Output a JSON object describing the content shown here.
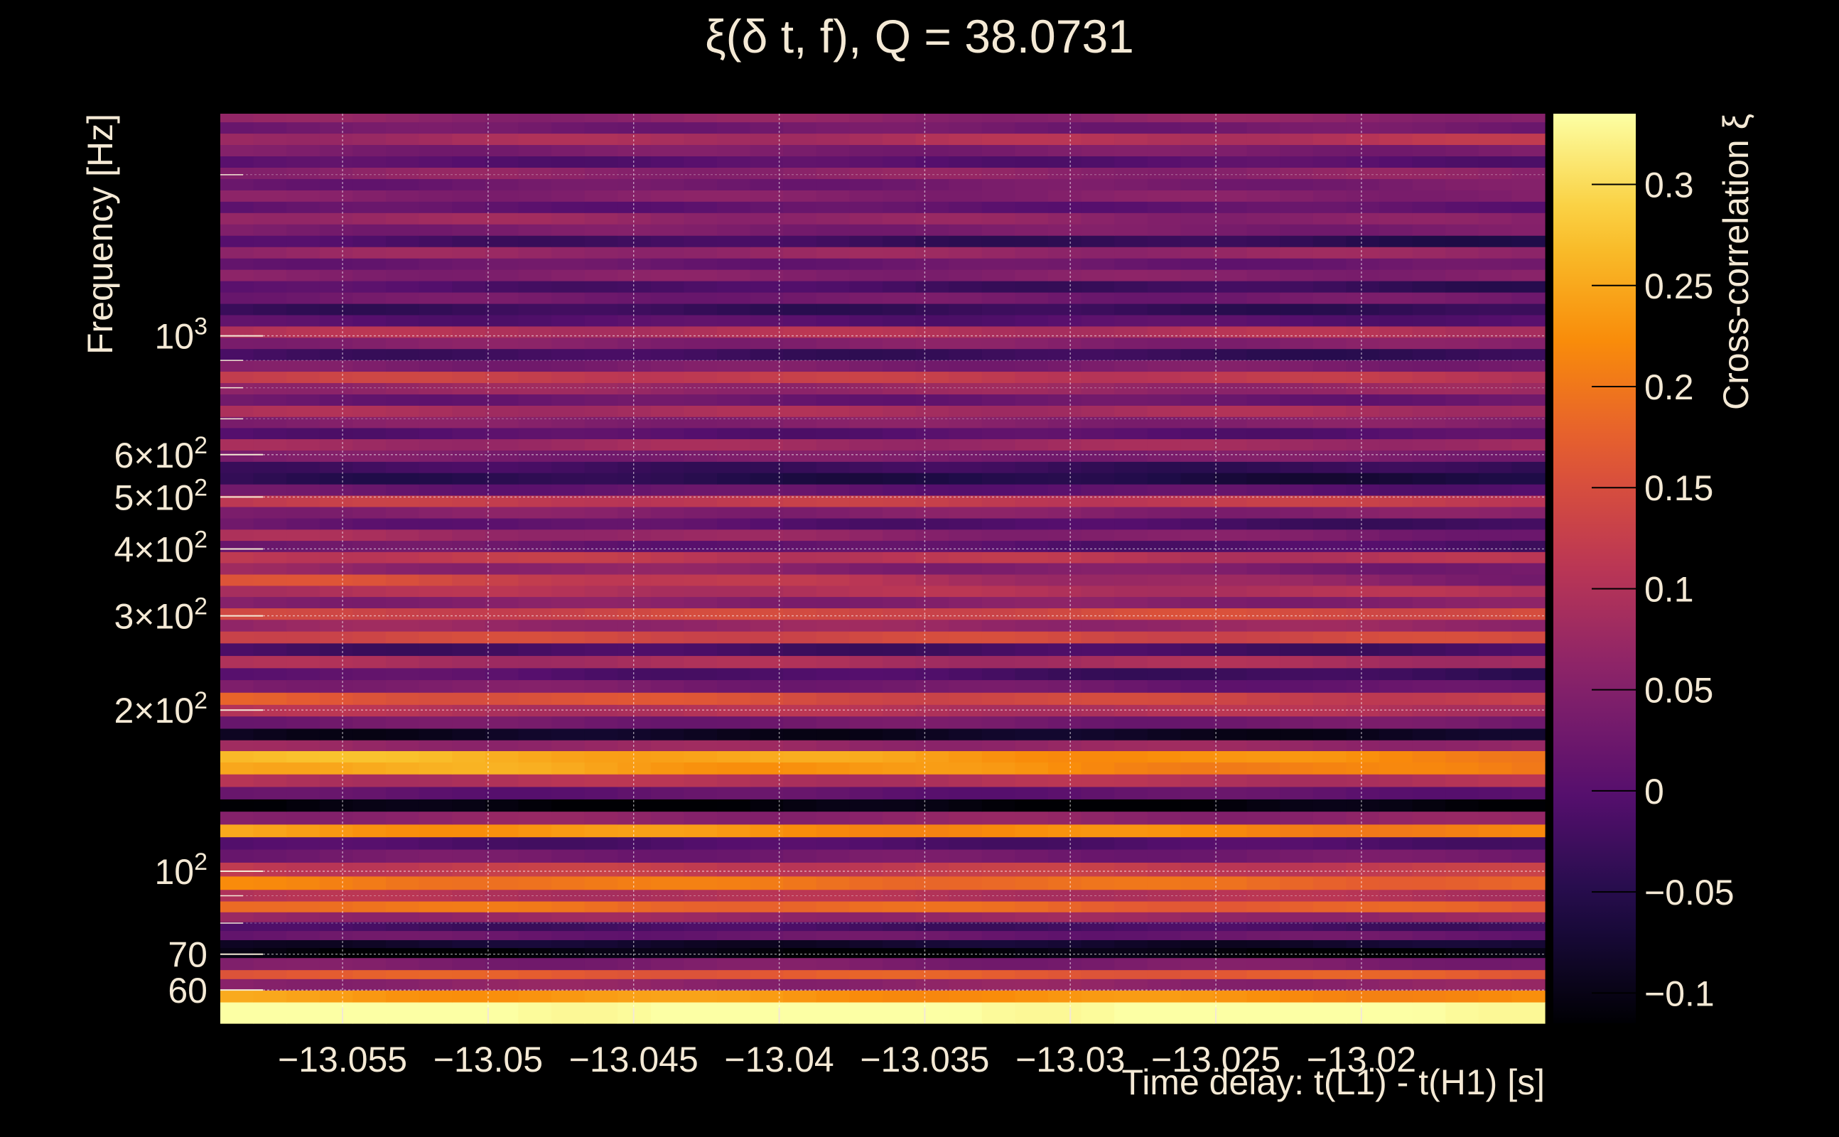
{
  "chart_data": {
    "type": "heatmap",
    "title": "ξ(δ t, f), Q = 38.0731",
    "xlabel": "Time delay: t(L1) - t(H1) [s]",
    "ylabel": "Frequency [Hz]",
    "colorbar_label": "Cross-correlation ξ",
    "xlim": [
      -13.0592,
      -13.0137
    ],
    "ylim": [
      52,
      2600
    ],
    "y_scale": "log",
    "clim": [
      -0.115,
      0.335
    ],
    "grid": true,
    "colormap": "inferno",
    "x_ticks": [
      {
        "value": -13.055,
        "label": "−13.055"
      },
      {
        "value": -13.05,
        "label": "−13.05"
      },
      {
        "value": -13.045,
        "label": "−13.045"
      },
      {
        "value": -13.04,
        "label": "−13.04"
      },
      {
        "value": -13.035,
        "label": "−13.035"
      },
      {
        "value": -13.03,
        "label": "−13.03"
      },
      {
        "value": -13.025,
        "label": "−13.025"
      },
      {
        "value": -13.02,
        "label": "−13.02"
      }
    ],
    "y_ticks": [
      {
        "value": 60,
        "base": "60",
        "exp": ""
      },
      {
        "value": 70,
        "base": "70",
        "exp": ""
      },
      {
        "value": 100,
        "base": "10",
        "exp": "2"
      },
      {
        "value": 200,
        "base": "2×10",
        "exp": "2"
      },
      {
        "value": 300,
        "base": "3×10",
        "exp": "2"
      },
      {
        "value": 400,
        "base": "4×10",
        "exp": "2"
      },
      {
        "value": 500,
        "base": "5×10",
        "exp": "2"
      },
      {
        "value": 600,
        "base": "6×10",
        "exp": "2"
      },
      {
        "value": 1000,
        "base": "10",
        "exp": "3"
      }
    ],
    "y_minor_ticks": [
      80,
      90,
      700,
      800,
      900,
      2000
    ],
    "colorbar_ticks": [
      {
        "value": 0.3,
        "label": "0.3"
      },
      {
        "value": 0.25,
        "label": "0.25"
      },
      {
        "value": 0.2,
        "label": "0.2"
      },
      {
        "value": 0.15,
        "label": "0.15"
      },
      {
        "value": 0.1,
        "label": "0.1"
      },
      {
        "value": 0.05,
        "label": "0.05"
      },
      {
        "value": 0,
        "label": "0"
      },
      {
        "value": -0.05,
        "label": "−0.05"
      },
      {
        "value": -0.1,
        "label": "−0.1"
      }
    ],
    "bands": [
      {
        "f": 56,
        "v": 0.34,
        "trend": 0
      },
      {
        "f": 58,
        "v": 0.24,
        "trend": -0.02
      },
      {
        "f": 62,
        "v": 0.06,
        "trend": 0
      },
      {
        "f": 64,
        "v": 0.17,
        "trend": 0
      },
      {
        "f": 67,
        "v": 0.04,
        "trend": 0
      },
      {
        "f": 71,
        "v": -0.11,
        "trend": 0
      },
      {
        "f": 73,
        "v": -0.08,
        "trend": 0
      },
      {
        "f": 76,
        "v": 0.02,
        "trend": 0
      },
      {
        "f": 79,
        "v": -0.02,
        "trend": 0
      },
      {
        "f": 82,
        "v": 0.07,
        "trend": 0
      },
      {
        "f": 86,
        "v": 0.2,
        "trend": -0.03
      },
      {
        "f": 90,
        "v": 0.1,
        "trend": 0
      },
      {
        "f": 95,
        "v": 0.21,
        "trend": -0.03
      },
      {
        "f": 101,
        "v": 0.12,
        "trend": 0
      },
      {
        "f": 107,
        "v": 0.03,
        "trend": 0
      },
      {
        "f": 113,
        "v": -0.01,
        "trend": 0
      },
      {
        "f": 119,
        "v": 0.24,
        "trend": -0.03
      },
      {
        "f": 126,
        "v": 0.06,
        "trend": 0
      },
      {
        "f": 133,
        "v": -0.11,
        "trend": 0
      },
      {
        "f": 140,
        "v": 0.01,
        "trend": 0
      },
      {
        "f": 148,
        "v": 0.1,
        "trend": 0
      },
      {
        "f": 156,
        "v": 0.26,
        "trend": -0.06
      },
      {
        "f": 164,
        "v": 0.27,
        "trend": -0.06
      },
      {
        "f": 172,
        "v": 0.07,
        "trend": 0
      },
      {
        "f": 180,
        "v": -0.09,
        "trend": 0
      },
      {
        "f": 190,
        "v": 0.03,
        "trend": 0
      },
      {
        "f": 200,
        "v": 0.1,
        "trend": 0
      },
      {
        "f": 210,
        "v": 0.17,
        "trend": -0.05
      },
      {
        "f": 222,
        "v": 0.05,
        "trend": -0.04
      },
      {
        "f": 234,
        "v": 0.01,
        "trend": -0.05
      },
      {
        "f": 246,
        "v": 0.09,
        "trend": 0
      },
      {
        "f": 260,
        "v": -0.02,
        "trend": 0
      },
      {
        "f": 274,
        "v": 0.14,
        "trend": 0
      },
      {
        "f": 288,
        "v": 0.07,
        "trend": 0
      },
      {
        "f": 303,
        "v": 0.13,
        "trend": 0.02
      },
      {
        "f": 318,
        "v": 0.05,
        "trend": 0
      },
      {
        "f": 334,
        "v": 0.1,
        "trend": 0
      },
      {
        "f": 350,
        "v": 0.16,
        "trend": -0.12
      },
      {
        "f": 368,
        "v": 0.07,
        "trend": -0.04
      },
      {
        "f": 386,
        "v": 0.12,
        "trend": -0.02
      },
      {
        "f": 405,
        "v": 0.03,
        "trend": -0.05
      },
      {
        "f": 425,
        "v": 0.09,
        "trend": -0.06
      },
      {
        "f": 446,
        "v": 0.02,
        "trend": -0.05
      },
      {
        "f": 468,
        "v": 0.05,
        "trend": 0
      },
      {
        "f": 492,
        "v": 0.12,
        "trend": 0
      },
      {
        "f": 516,
        "v": 0.02,
        "trend": -0.02
      },
      {
        "f": 542,
        "v": -0.04,
        "trend": -0.03
      },
      {
        "f": 569,
        "v": -0.02,
        "trend": -0.02
      },
      {
        "f": 597,
        "v": 0.04,
        "trend": 0
      },
      {
        "f": 627,
        "v": 0.08,
        "trend": 0
      },
      {
        "f": 658,
        "v": 0.0,
        "trend": 0
      },
      {
        "f": 690,
        "v": 0.05,
        "trend": 0
      },
      {
        "f": 724,
        "v": 0.09,
        "trend": 0
      },
      {
        "f": 760,
        "v": 0.02,
        "trend": 0
      },
      {
        "f": 798,
        "v": 0.07,
        "trend": 0
      },
      {
        "f": 838,
        "v": 0.13,
        "trend": -0.02
      },
      {
        "f": 880,
        "v": 0.04,
        "trend": 0
      },
      {
        "f": 924,
        "v": -0.02,
        "trend": -0.02
      },
      {
        "f": 970,
        "v": 0.05,
        "trend": 0
      },
      {
        "f": 1018,
        "v": 0.1,
        "trend": 0
      },
      {
        "f": 1069,
        "v": 0.0,
        "trend": 0
      },
      {
        "f": 1122,
        "v": -0.03,
        "trend": -0.01
      },
      {
        "f": 1178,
        "v": 0.03,
        "trend": 0
      },
      {
        "f": 1237,
        "v": 0.0,
        "trend": -0.04
      },
      {
        "f": 1299,
        "v": 0.05,
        "trend": 0
      },
      {
        "f": 1364,
        "v": 0.02,
        "trend": 0
      },
      {
        "f": 1432,
        "v": 0.07,
        "trend": 0
      },
      {
        "f": 1504,
        "v": -0.01,
        "trend": -0.04
      },
      {
        "f": 1579,
        "v": 0.04,
        "trend": 0
      },
      {
        "f": 1658,
        "v": 0.08,
        "trend": -0.03
      },
      {
        "f": 1741,
        "v": 0.01,
        "trend": 0
      },
      {
        "f": 1828,
        "v": 0.05,
        "trend": 0
      },
      {
        "f": 1919,
        "v": 0.02,
        "trend": 0.02
      },
      {
        "f": 2015,
        "v": 0.06,
        "trend": 0
      },
      {
        "f": 2116,
        "v": 0.0,
        "trend": 0
      },
      {
        "f": 2222,
        "v": 0.04,
        "trend": 0
      },
      {
        "f": 2333,
        "v": 0.08,
        "trend": 0.03
      },
      {
        "f": 2450,
        "v": 0.03,
        "trend": 0
      },
      {
        "f": 2572,
        "v": 0.06,
        "trend": 0
      }
    ]
  }
}
